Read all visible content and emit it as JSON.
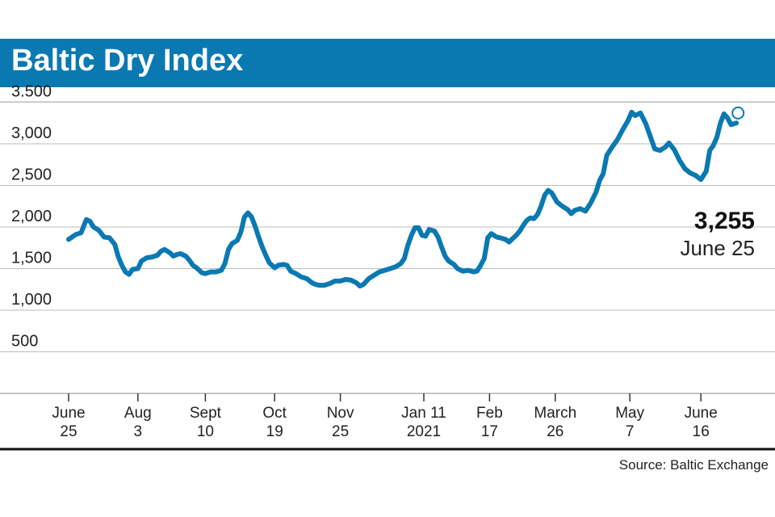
{
  "title": "Baltic Dry Index",
  "source": "Source: Baltic Exchange",
  "colors": {
    "accent": "#0a79b2",
    "text": "#1a1a1a",
    "grid": "#bbbbbb"
  },
  "annotation": {
    "value": "3,255",
    "date": "June 25"
  },
  "chart_data": {
    "type": "line",
    "title": "Baltic Dry Index",
    "xlabel": "",
    "ylabel": "",
    "ylim": [
      0,
      3500
    ],
    "yticks": [
      {
        "value": 500,
        "label": "500"
      },
      {
        "value": 1000,
        "label": "1,000"
      },
      {
        "value": 1500,
        "label": "1,500"
      },
      {
        "value": 2000,
        "label": "2,000"
      },
      {
        "value": 2500,
        "label": "2,500"
      },
      {
        "value": 3000,
        "label": "3,000"
      },
      {
        "value": 3500,
        "label": "3.500"
      }
    ],
    "xticks": [
      {
        "day": 0,
        "line1": "June",
        "line2": "25"
      },
      {
        "day": 39,
        "line1": "Aug",
        "line2": "3"
      },
      {
        "day": 77,
        "line1": "Sept",
        "line2": "10"
      },
      {
        "day": 116,
        "line1": "Oct",
        "line2": "19"
      },
      {
        "day": 153,
        "line1": "Nov",
        "line2": "25"
      },
      {
        "day": 200,
        "line1": "Jan 11",
        "line2": "2021"
      },
      {
        "day": 237,
        "line1": "Feb",
        "line2": "17"
      },
      {
        "day": 274,
        "line1": "March",
        "line2": "26"
      },
      {
        "day": 316,
        "line1": "May",
        "line2": "7"
      },
      {
        "day": 356,
        "line1": "June",
        "line2": "16"
      }
    ],
    "series": [
      {
        "name": "Baltic Dry Index",
        "points": [
          [
            0,
            1850
          ],
          [
            4,
            1910
          ],
          [
            7,
            1930
          ],
          [
            10,
            2090
          ],
          [
            12,
            2070
          ],
          [
            14,
            2000
          ],
          [
            17,
            1960
          ],
          [
            20,
            1880
          ],
          [
            23,
            1870
          ],
          [
            26,
            1790
          ],
          [
            28,
            1640
          ],
          [
            30,
            1540
          ],
          [
            32,
            1460
          ],
          [
            34,
            1430
          ],
          [
            36,
            1490
          ],
          [
            39,
            1500
          ],
          [
            41,
            1590
          ],
          [
            44,
            1630
          ],
          [
            47,
            1640
          ],
          [
            50,
            1660
          ],
          [
            52,
            1710
          ],
          [
            54,
            1730
          ],
          [
            57,
            1690
          ],
          [
            59,
            1650
          ],
          [
            61,
            1670
          ],
          [
            63,
            1680
          ],
          [
            66,
            1650
          ],
          [
            68,
            1600
          ],
          [
            70,
            1540
          ],
          [
            72,
            1510
          ],
          [
            75,
            1450
          ],
          [
            77,
            1440
          ],
          [
            80,
            1460
          ],
          [
            83,
            1460
          ],
          [
            86,
            1480
          ],
          [
            88,
            1560
          ],
          [
            90,
            1730
          ],
          [
            92,
            1800
          ],
          [
            95,
            1840
          ],
          [
            97,
            1940
          ],
          [
            99,
            2120
          ],
          [
            101,
            2170
          ],
          [
            103,
            2120
          ],
          [
            105,
            2010
          ],
          [
            107,
            1880
          ],
          [
            109,
            1760
          ],
          [
            111,
            1660
          ],
          [
            113,
            1570
          ],
          [
            116,
            1510
          ],
          [
            118,
            1540
          ],
          [
            121,
            1550
          ],
          [
            123,
            1540
          ],
          [
            125,
            1470
          ],
          [
            128,
            1440
          ],
          [
            131,
            1400
          ],
          [
            134,
            1380
          ],
          [
            137,
            1330
          ],
          [
            139,
            1310
          ],
          [
            141,
            1300
          ],
          [
            144,
            1300
          ],
          [
            147,
            1320
          ],
          [
            150,
            1350
          ],
          [
            153,
            1350
          ],
          [
            156,
            1370
          ],
          [
            159,
            1360
          ],
          [
            162,
            1330
          ],
          [
            164,
            1290
          ],
          [
            166,
            1310
          ],
          [
            169,
            1380
          ],
          [
            172,
            1420
          ],
          [
            175,
            1460
          ],
          [
            178,
            1480
          ],
          [
            181,
            1500
          ],
          [
            184,
            1520
          ],
          [
            187,
            1560
          ],
          [
            189,
            1620
          ],
          [
            191,
            1780
          ],
          [
            193,
            1900
          ],
          [
            195,
            1990
          ],
          [
            197,
            1990
          ],
          [
            199,
            1900
          ],
          [
            201,
            1890
          ],
          [
            203,
            1970
          ],
          [
            206,
            1950
          ],
          [
            208,
            1880
          ],
          [
            210,
            1760
          ],
          [
            212,
            1650
          ],
          [
            214,
            1590
          ],
          [
            217,
            1550
          ],
          [
            219,
            1500
          ],
          [
            222,
            1470
          ],
          [
            225,
            1480
          ],
          [
            228,
            1460
          ],
          [
            230,
            1470
          ],
          [
            232,
            1540
          ],
          [
            234,
            1620
          ],
          [
            236,
            1870
          ],
          [
            238,
            1920
          ],
          [
            241,
            1880
          ],
          [
            243,
            1870
          ],
          [
            246,
            1850
          ],
          [
            248,
            1820
          ],
          [
            250,
            1860
          ],
          [
            252,
            1900
          ],
          [
            254,
            1950
          ],
          [
            256,
            2020
          ],
          [
            258,
            2080
          ],
          [
            260,
            2110
          ],
          [
            262,
            2100
          ],
          [
            264,
            2150
          ],
          [
            266,
            2250
          ],
          [
            268,
            2380
          ],
          [
            270,
            2440
          ],
          [
            272,
            2410
          ],
          [
            275,
            2300
          ],
          [
            278,
            2250
          ],
          [
            281,
            2210
          ],
          [
            283,
            2160
          ],
          [
            285,
            2200
          ],
          [
            288,
            2220
          ],
          [
            291,
            2190
          ],
          [
            294,
            2290
          ],
          [
            297,
            2420
          ],
          [
            299,
            2560
          ],
          [
            301,
            2640
          ],
          [
            303,
            2860
          ],
          [
            306,
            2960
          ],
          [
            309,
            3050
          ],
          [
            312,
            3170
          ],
          [
            315,
            3280
          ],
          [
            317,
            3380
          ],
          [
            319,
            3340
          ],
          [
            322,
            3370
          ],
          [
            325,
            3240
          ],
          [
            327,
            3120
          ],
          [
            330,
            2940
          ],
          [
            333,
            2920
          ],
          [
            336,
            2960
          ],
          [
            338,
            3010
          ],
          [
            341,
            2930
          ],
          [
            344,
            2800
          ],
          [
            347,
            2700
          ],
          [
            350,
            2650
          ],
          [
            353,
            2620
          ],
          [
            356,
            2570
          ],
          [
            359,
            2670
          ],
          [
            361,
            2920
          ],
          [
            363,
            2980
          ],
          [
            365,
            3080
          ],
          [
            367,
            3250
          ],
          [
            369,
            3360
          ],
          [
            371,
            3310
          ],
          [
            373,
            3230
          ],
          [
            376,
            3250
          ]
        ]
      }
    ],
    "last_point": {
      "day": 376,
      "value": 3255,
      "label": "June 25"
    }
  }
}
